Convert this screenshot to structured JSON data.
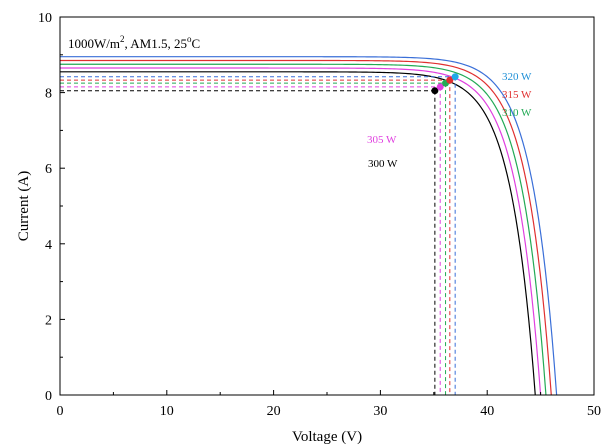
{
  "chart_data": {
    "type": "line",
    "annotation": {
      "text": "1000W/m², AM1.5, 25°C",
      "irradiance": "1000W/m",
      "irradiance_sup": "2",
      "air_mass": ", AM1.5, 25",
      "temp_sup": "o",
      "temp_unit": "C"
    },
    "xlabel": "Voltage (V)",
    "ylabel": "Current (A)",
    "xlim": [
      0,
      50
    ],
    "ylim": [
      0,
      10
    ],
    "xticks": [
      0,
      10,
      20,
      30,
      40,
      50
    ],
    "yticks": [
      0,
      2,
      4,
      6,
      8,
      10
    ],
    "xtick_labels": [
      "0",
      "10",
      "20",
      "30",
      "40",
      "50"
    ],
    "ytick_labels": [
      "0",
      "2",
      "4",
      "6",
      "8",
      "10"
    ],
    "grid": false,
    "series": [
      {
        "name": "300 W",
        "color": "#000000",
        "isc": 8.55,
        "voc": 44.5,
        "vmp": 35.1,
        "imp": 8.05
      },
      {
        "name": "305 W",
        "color": "#e040e0",
        "isc": 8.65,
        "voc": 45.0,
        "vmp": 35.6,
        "imp": 8.15
      },
      {
        "name": "310 W",
        "color": "#22aa55",
        "isc": 8.75,
        "voc": 45.5,
        "vmp": 36.1,
        "imp": 8.25
      },
      {
        "name": "315 W",
        "color": "#e03030",
        "isc": 8.85,
        "voc": 46.0,
        "vmp": 36.5,
        "imp": 8.33
      },
      {
        "name": "320 W",
        "color": "#3a6fd8",
        "isc": 8.95,
        "voc": 46.5,
        "vmp": 37.0,
        "imp": 8.42
      }
    ],
    "mpp_marker_colors": [
      "#000000",
      "#e040e0",
      "#22aa55",
      "#e03030",
      "#1fa8e8"
    ]
  }
}
